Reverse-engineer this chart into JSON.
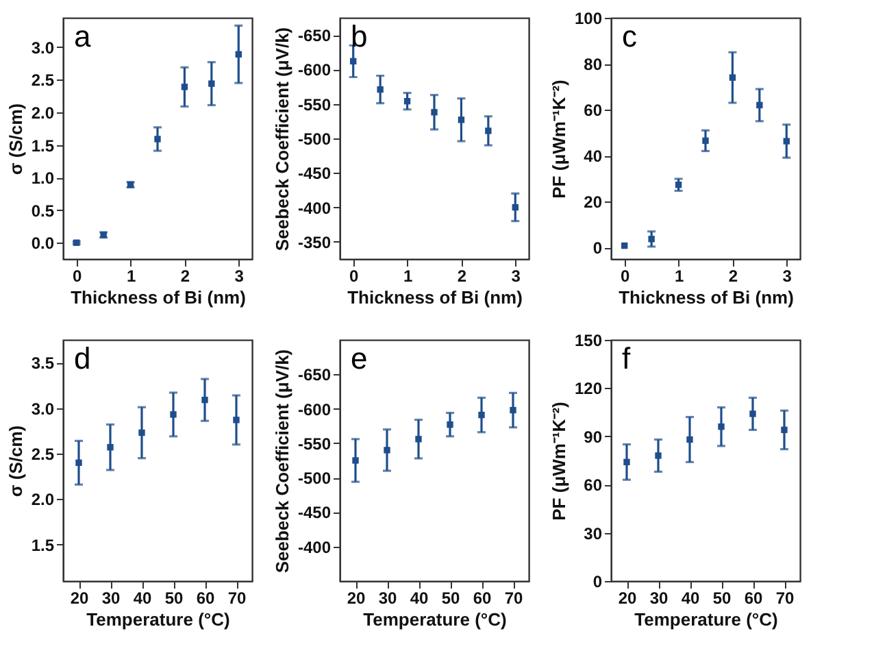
{
  "chart_data": [
    {
      "type": "scatter",
      "xlabel": "Thickness of Bi (nm)",
      "ylabel": "σ (S/cm)",
      "annotations": [
        "a"
      ],
      "marker": "square",
      "x": [
        0,
        0.5,
        1,
        1.5,
        2,
        2.5,
        3
      ],
      "xlim": [
        -0.25,
        3.25
      ],
      "xticks": [
        0,
        1,
        2,
        3
      ],
      "ylim": [
        -0.25,
        3.45
      ],
      "yticks": [
        {
          "value": 0,
          "label": "0.0"
        },
        {
          "value": 0.5,
          "label": "0.5"
        },
        {
          "value": 1,
          "label": "1.0"
        },
        {
          "value": 1.5,
          "label": "1.5"
        },
        {
          "value": 2,
          "label": "2.0"
        },
        {
          "value": 2.5,
          "label": "2.5"
        },
        {
          "value": 3,
          "label": "3.0"
        }
      ],
      "series": [
        {
          "color": "#1f4e8c",
          "values": [
            0.0,
            0.12,
            0.89,
            1.59,
            2.39,
            2.44,
            2.89
          ],
          "errors": [
            0.02,
            0.04,
            0.04,
            0.18,
            0.3,
            [
              2.11,
              2.77
            ],
            [
              2.45,
              3.33
            ]
          ]
        }
      ]
    },
    {
      "type": "scatter",
      "xlabel": "Thickness of Bi (nm)",
      "ylabel": "Seebeck Coefficient (μV/k)",
      "annotations": [
        "b"
      ],
      "marker": "square",
      "x": [
        0,
        0.5,
        1,
        1.5,
        2,
        2.5,
        3
      ],
      "xlim": [
        -0.25,
        3.25
      ],
      "xticks": [
        0,
        1,
        2,
        3
      ],
      "ylim": [
        -325,
        -675
      ],
      "yticks": [
        -650,
        -600,
        -550,
        -500,
        -450,
        -400,
        -350
      ],
      "series": [
        {
          "color": "#1f4e8c",
          "values": [
            -612,
            -571,
            -554,
            -538,
            -527,
            -511,
            -400
          ],
          "errors": [
            23,
            20,
            12,
            25,
            31,
            21,
            20
          ]
        }
      ]
    },
    {
      "type": "scatter",
      "xlabel": "Thickness of Bi (nm)",
      "ylabel": "PF (μWm⁻¹K⁻²)",
      "annotations": [
        "c"
      ],
      "marker": "square",
      "x": [
        0,
        0.5,
        1,
        1.5,
        2,
        2.5,
        3
      ],
      "xlim": [
        -0.25,
        3.25
      ],
      "xticks": [
        0,
        1,
        2,
        3
      ],
      "ylim": [
        -5,
        100
      ],
      "yticks": [
        0,
        20,
        40,
        60,
        80,
        100
      ],
      "series": [
        {
          "color": "#1f4e8c",
          "values": [
            0.8,
            3.7,
            27.3,
            46.5,
            74,
            62,
            46.3
          ],
          "errors": [
            null,
            3.3,
            2.6,
            4.5,
            11,
            7,
            7.2
          ]
        }
      ]
    },
    {
      "type": "scatter",
      "xlabel": "Temperature (°C)",
      "ylabel": "σ (S/cm)",
      "annotations": [
        "d"
      ],
      "marker": "square",
      "x": [
        20,
        30,
        40,
        50,
        60,
        70
      ],
      "xlim": [
        15,
        75
      ],
      "xticks": [
        20,
        30,
        40,
        50,
        60,
        70
      ],
      "ylim": [
        1.1,
        3.75
      ],
      "yticks": [
        {
          "value": 1.5,
          "label": "1.5"
        },
        {
          "value": 2,
          "label": "2.0"
        },
        {
          "value": 2.5,
          "label": "2.5"
        },
        {
          "value": 3,
          "label": "3.0"
        },
        {
          "value": 3.5,
          "label": "3.5"
        }
      ],
      "series": [
        {
          "color": "#1f4e8c",
          "values": [
            2.4,
            2.57,
            2.73,
            2.93,
            3.09,
            2.87
          ],
          "errors": [
            0.24,
            0.25,
            0.28,
            0.24,
            0.23,
            0.27
          ]
        }
      ]
    },
    {
      "type": "scatter",
      "xlabel": "Temperature (°C)",
      "ylabel": "Seebeck Coefficient (μV/k)",
      "annotations": [
        "e"
      ],
      "marker": "square",
      "x": [
        20,
        30,
        40,
        50,
        60,
        70
      ],
      "xlim": [
        15,
        75
      ],
      "xticks": [
        20,
        30,
        40,
        50,
        60,
        70
      ],
      "ylim": [
        -350,
        -700
      ],
      "yticks": [
        -650,
        -600,
        -550,
        -500,
        -450,
        -400
      ],
      "series": [
        {
          "color": "#1f4e8c",
          "values": [
            -525,
            -540,
            -556,
            -577,
            -591,
            -598
          ],
          "errors": [
            31,
            30,
            28,
            17,
            25,
            25
          ]
        }
      ]
    },
    {
      "type": "scatter",
      "xlabel": "Temperature (°C)",
      "ylabel": "PF (μWm⁻¹K⁻²)",
      "annotations": [
        "f"
      ],
      "marker": "square",
      "x": [
        20,
        30,
        40,
        50,
        60,
        70
      ],
      "xlim": [
        15,
        75
      ],
      "xticks": [
        20,
        30,
        40,
        50,
        60,
        70
      ],
      "ylim": [
        0,
        150
      ],
      "yticks": [
        0,
        30,
        60,
        90,
        120,
        150
      ],
      "series": [
        {
          "color": "#1f4e8c",
          "values": [
            74,
            78,
            88,
            96,
            104,
            94
          ],
          "errors": [
            11,
            10,
            14,
            12,
            10,
            12
          ]
        }
      ]
    }
  ]
}
